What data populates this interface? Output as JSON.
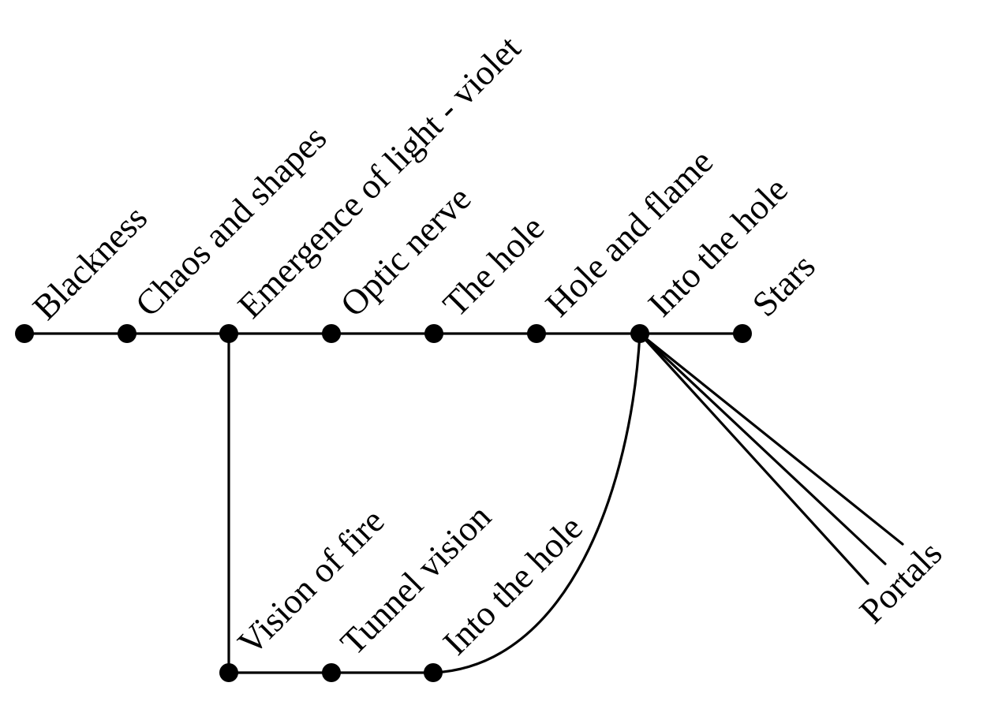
{
  "diagram": {
    "line_color": "#000000",
    "background": "#ffffff",
    "main_sequence": [
      "Blackness",
      "Chaos and shapes",
      "Emergence of light - violet",
      "Optic nerve",
      "The hole",
      "Hole and flame",
      "Into the hole",
      "Stars"
    ],
    "branch_sequence": [
      "Vision of fire",
      "Tunnel vision",
      "Into the hole"
    ],
    "fan_label": "Portals"
  }
}
